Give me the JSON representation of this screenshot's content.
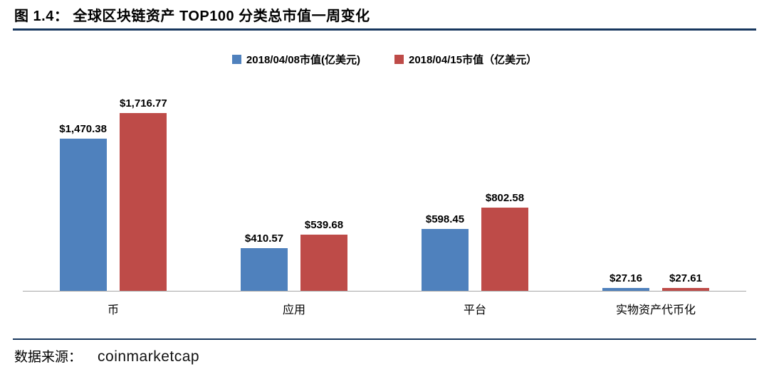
{
  "header": {
    "title": "图 1.4： 全球区块链资产 TOP100 分类总市值一周变化"
  },
  "footer": {
    "source_label": "数据来源：",
    "source_value": "coinmarketcap"
  },
  "theme": {
    "rule_color": "#17375E",
    "axis_color": "#A6A6A6",
    "series1_color": "#4F81BD",
    "series2_color": "#BE4B48"
  },
  "chart_data": {
    "type": "bar",
    "title": "全球区块链资产 TOP100 分类总市值一周变化",
    "categories": [
      "币",
      "应用",
      "平台",
      "实物资产代币化"
    ],
    "series": [
      {
        "name": "2018/04/08市值(亿美元)",
        "color": "#4F81BD",
        "values": [
          1470.38,
          410.57,
          598.45,
          27.16
        ],
        "labels": [
          "$1,470.38",
          "$410.57",
          "$598.45",
          "$27.16"
        ]
      },
      {
        "name": "2018/04/15市值（亿美元）",
        "color": "#BE4B48",
        "values": [
          1716.77,
          539.68,
          802.58,
          27.61
        ],
        "labels": [
          "$1,716.77",
          "$539.68",
          "$802.58",
          "$27.61"
        ]
      }
    ],
    "xlabel": "",
    "ylabel": "",
    "ylim": [
      0,
      1800
    ],
    "y_axis_visible": false,
    "grid": false,
    "legend_position": "top",
    "data_labels": true
  }
}
